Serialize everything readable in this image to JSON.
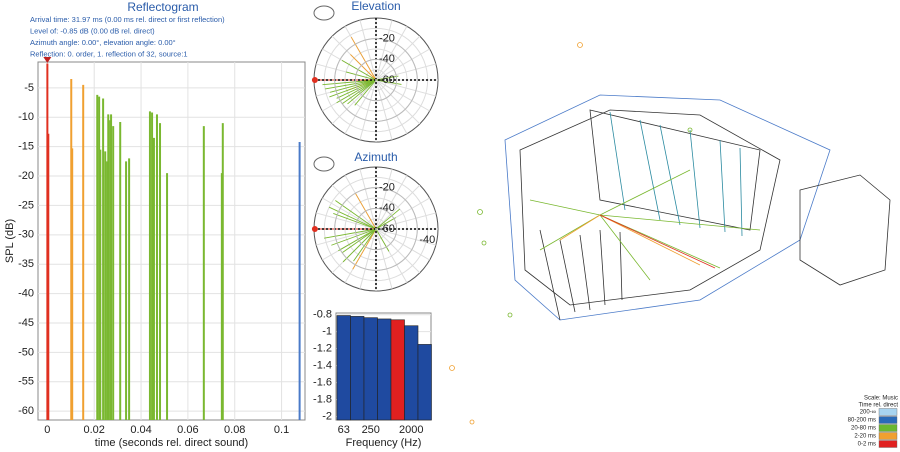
{
  "chart_data": [
    {
      "type": "stem",
      "title": "Reflectogram",
      "annotations": [
        "Arrival time: 31.97 ms (0.00 ms rel. direct or first reflection)",
        "Level of: -0.85 dB (0.00 dB rel. direct)",
        "Azimuth angle: 0.00°, elevation angle: 0.00°",
        "Reflection: 0. order, 1. reflection of 32, source:1"
      ],
      "xlabel": "time (seconds rel. direct sound)",
      "ylabel": "SPL (dB)",
      "xlim": [
        -0.004,
        0.11
      ],
      "xticks": [
        0,
        0.02,
        0.04,
        0.06,
        0.08,
        0.1
      ],
      "ylim": [
        -61.5,
        -0.6
      ],
      "yticks": [
        -5,
        -10,
        -15,
        -20,
        -25,
        -30,
        -35,
        -40,
        -45,
        -50,
        -55,
        -60
      ],
      "series": [
        {
          "color": "#e03020",
          "x": [
            0,
            0.0004
          ],
          "values": [
            -0.85,
            -12.8
          ]
        },
        {
          "color": "#f0a030",
          "x": [
            0.0102,
            0.0106,
            0.0153
          ],
          "values": [
            -3.5,
            -15.3,
            -4.5
          ]
        },
        {
          "color": "#7ab830",
          "x": [
            0.0213,
            0.0221,
            0.0226,
            0.0238,
            0.0247,
            0.0255,
            0.026,
            0.0268,
            0.0272,
            0.0281,
            0.0311,
            0.0336,
            0.0349,
            0.0438,
            0.0447,
            0.0455,
            0.0468,
            0.0481,
            0.0511,
            0.0668,
            0.0745,
            0.0749
          ],
          "values": [
            -6.2,
            -6.5,
            -15.5,
            -6.8,
            -15.8,
            -17.5,
            -9.5,
            -10.5,
            -9.5,
            -11.5,
            -10.8,
            -17.5,
            -17,
            -9,
            -9.2,
            -13.5,
            -9.5,
            -11,
            -19.5,
            -11.5,
            -19.5,
            -11
          ]
        },
        {
          "color": "#4a7ac8",
          "x": [
            0.1077
          ],
          "values": [
            -14.2
          ]
        }
      ]
    },
    {
      "type": "polar",
      "title": "Elevation",
      "rlim": [
        -60,
        0
      ],
      "rticks": [
        -20,
        -40,
        -60
      ],
      "series": [
        {
          "color": "#e03020",
          "angles": [
            180
          ],
          "values": [
            -0.85
          ]
        },
        {
          "color": "#f0a030",
          "angles": [
            120,
            135,
            200
          ],
          "values": [
            -12,
            -25,
            -30
          ]
        },
        {
          "color": "#7ab830",
          "angles": [
            190,
            195,
            200,
            205,
            210,
            215,
            220,
            150,
            165,
            350,
            10,
            230,
            185
          ],
          "values": [
            -10,
            -14,
            -12,
            -18,
            -16,
            -20,
            -24,
            -22,
            -30,
            -35,
            -38,
            -28,
            -8
          ]
        }
      ]
    },
    {
      "type": "polar",
      "title": "Azimuth",
      "rlim": [
        -60,
        0
      ],
      "rticks": [
        -20,
        -40,
        -60
      ],
      "rticks_right": [
        -40
      ],
      "series": [
        {
          "color": "#e03020",
          "angles": [
            180
          ],
          "values": [
            -0.85
          ]
        },
        {
          "color": "#f0a030",
          "angles": [
            240,
            120
          ],
          "values": [
            -15,
            -20
          ]
        },
        {
          "color": "#7ab830",
          "angles": [
            145,
            155,
            160,
            200,
            210,
            215,
            225,
            235,
            300,
            30,
            40,
            190
          ],
          "values": [
            -12,
            -10,
            -16,
            -14,
            -18,
            -20,
            -15,
            -22,
            -35,
            -38,
            -30,
            -9
          ]
        }
      ]
    },
    {
      "type": "bar",
      "xlabel": "Frequency (Hz)",
      "categories": [
        "63",
        null,
        "250",
        null,
        null,
        "2000",
        null
      ],
      "values": [
        -0.81,
        -0.82,
        -0.835,
        -0.85,
        -0.86,
        -0.93,
        -1.15
      ],
      "colors": [
        "#1f4aa0",
        "#1f4aa0",
        "#1f4aa0",
        "#1f4aa0",
        "#e02020",
        "#1f4aa0",
        "#1f4aa0"
      ],
      "ylim": [
        -2.04,
        -0.78
      ],
      "yticks": [
        -0.8,
        -1,
        -1.2,
        -1.4,
        -1.6,
        -1.8,
        -2
      ]
    }
  ],
  "legend": {
    "title": "Scale: Music",
    "subtitle": "Time rel. direct",
    "items": [
      {
        "label": "200-∞",
        "color": "#a8d4f0"
      },
      {
        "label": "80-200 ms",
        "color": "#2a6ab8"
      },
      {
        "label": "20-80 ms",
        "color": "#6ab830"
      },
      {
        "label": "2-20 ms",
        "color": "#f0a030"
      },
      {
        "label": "0-2 ms",
        "color": "#e02020"
      }
    ]
  }
}
